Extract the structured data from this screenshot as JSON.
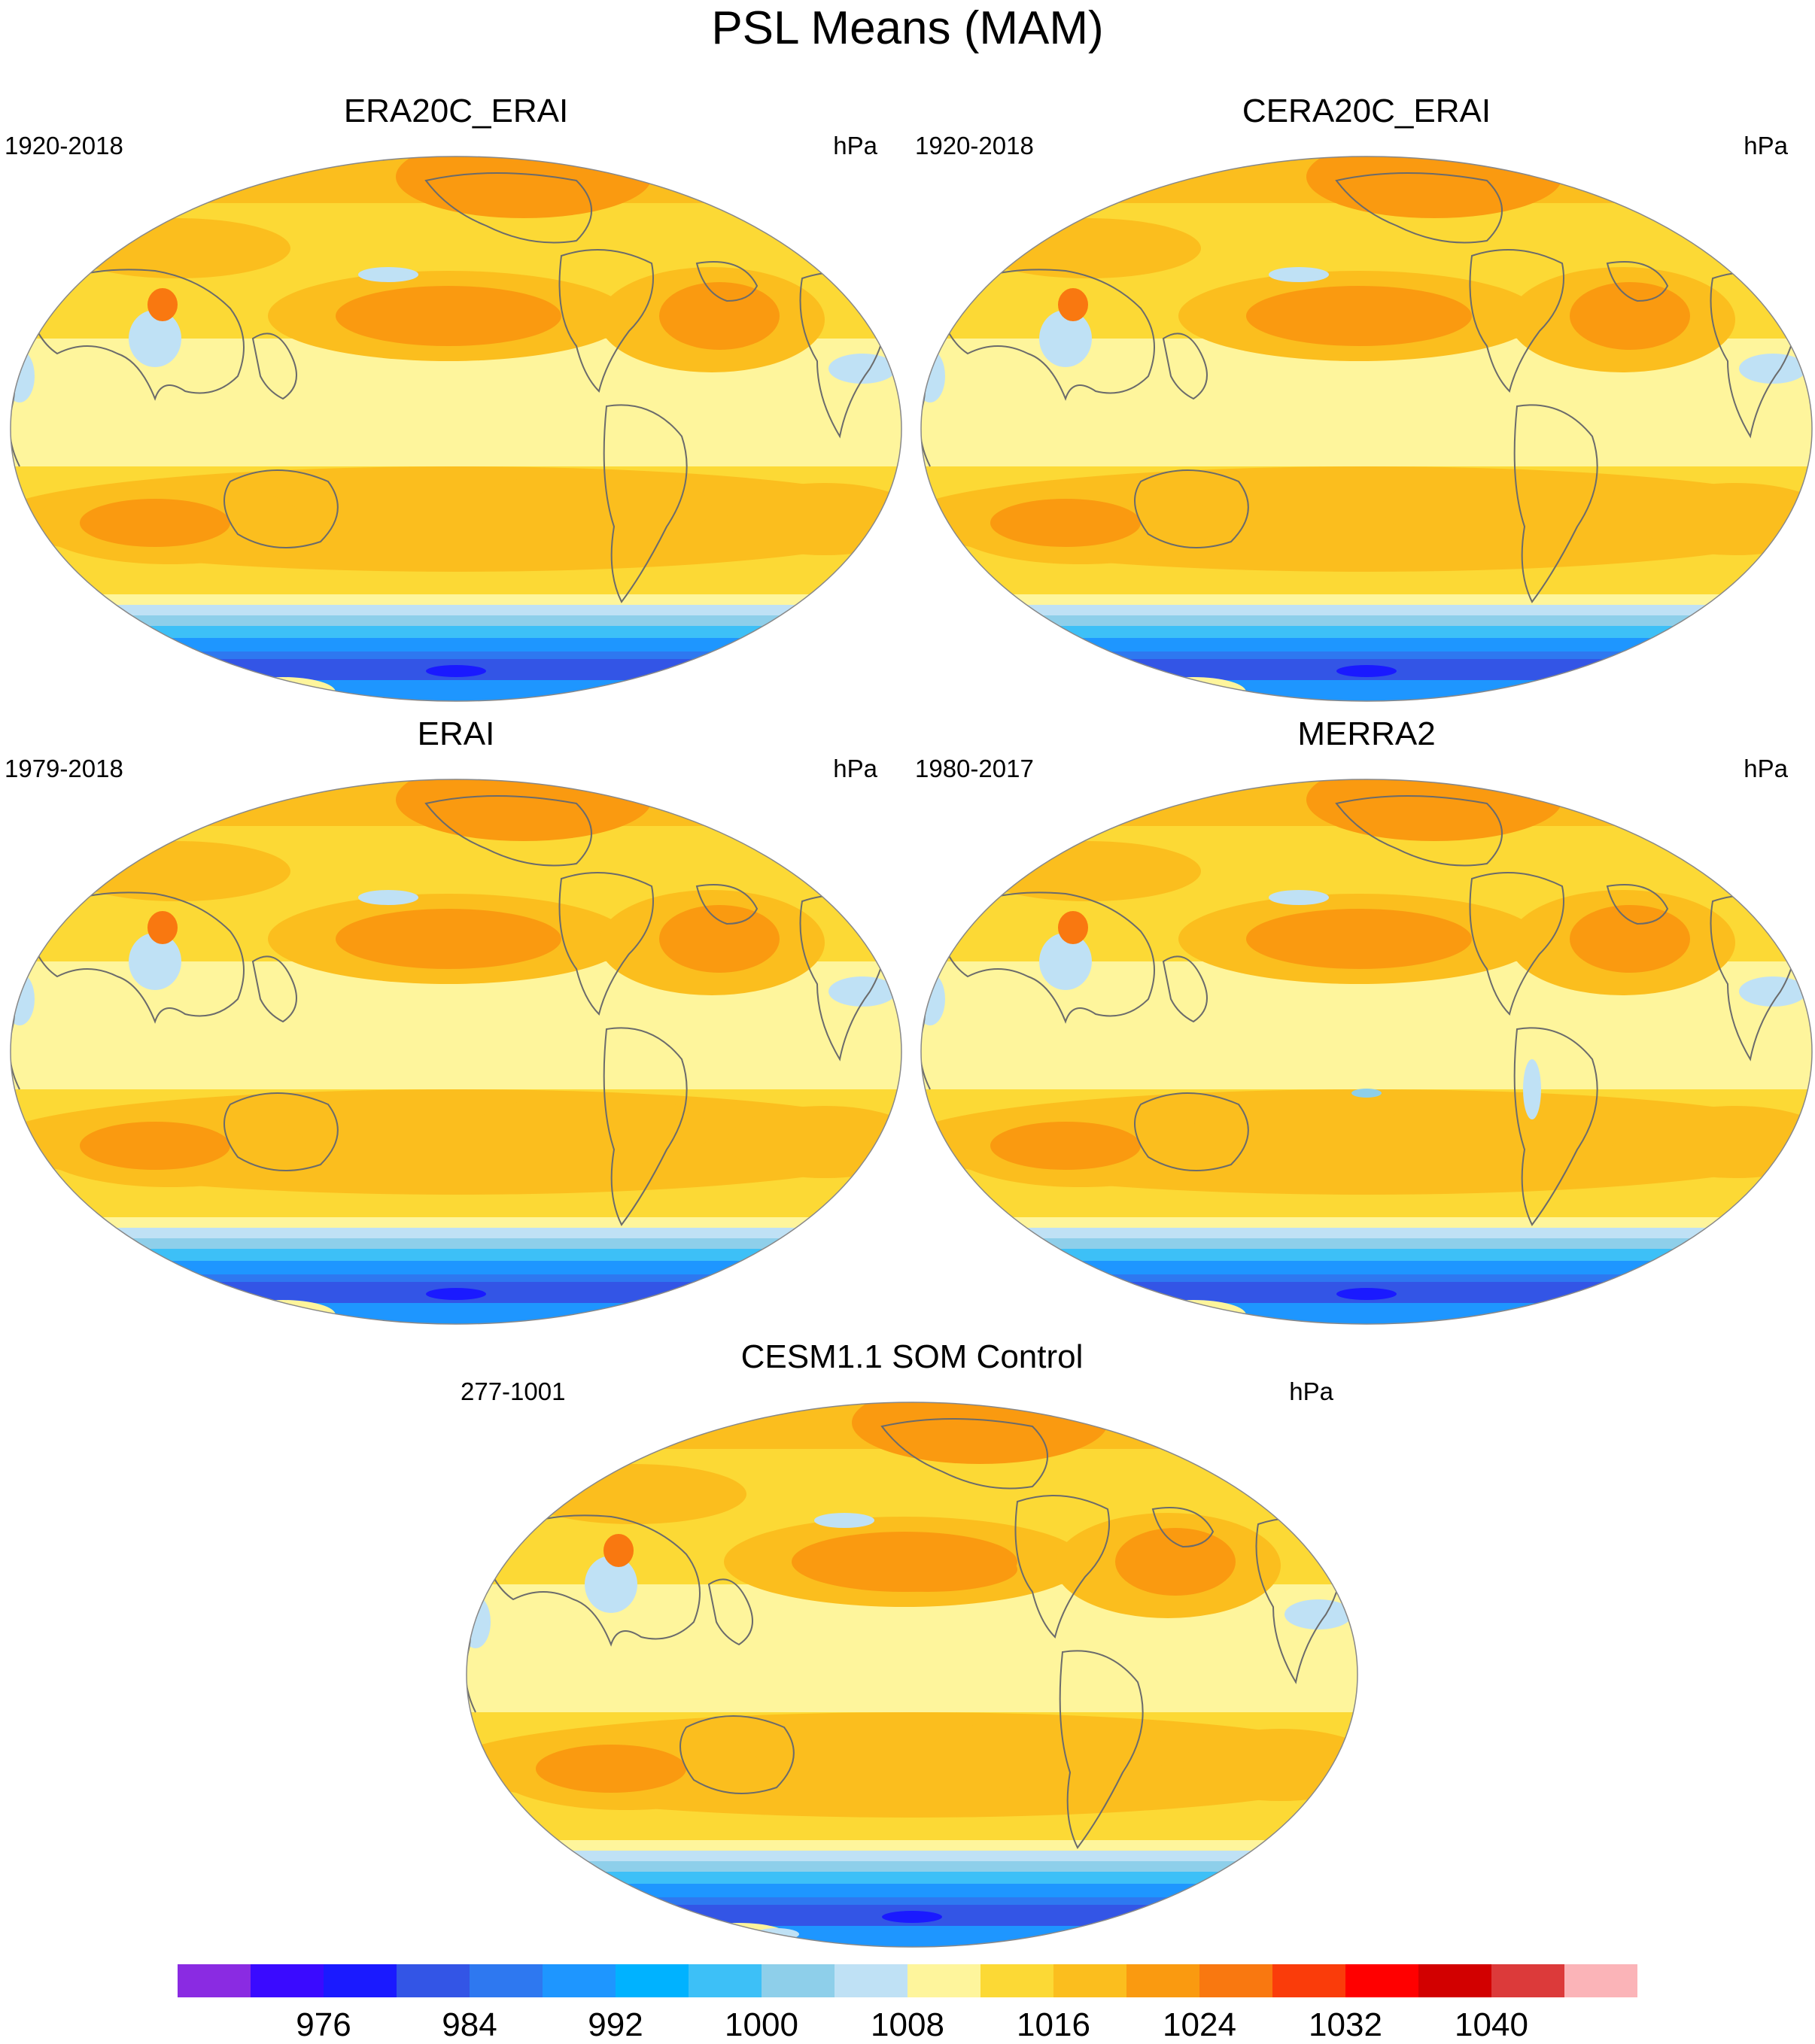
{
  "title": "PSL Means (MAM)",
  "panels": [
    {
      "title": "ERA20C_ERAI",
      "period": "1920-2018",
      "units": "hPa",
      "variant": "era20c"
    },
    {
      "title": "CERA20C_ERAI",
      "period": "1920-2018",
      "units": "hPa",
      "variant": "cera20c"
    },
    {
      "title": "ERAI",
      "period": "1979-2018",
      "units": "hPa",
      "variant": "erai"
    },
    {
      "title": "MERRA2",
      "period": "1980-2017",
      "units": "hPa",
      "variant": "merra2"
    },
    {
      "title": "CESM1.1 SOM Control",
      "period": "277-1001",
      "units": "hPa",
      "variant": "cesm"
    }
  ],
  "colorbar": {
    "colors": [
      "#8a2be2",
      "#3a0aff",
      "#1a1aff",
      "#3355e6",
      "#2e78f0",
      "#1e96ff",
      "#00b2ff",
      "#3dc0f7",
      "#8ecfea",
      "#bfe1f5",
      "#fef59c",
      "#fcd935",
      "#fbbe1e",
      "#fa9a10",
      "#f97810",
      "#fa3c0a",
      "#ff0000",
      "#d20000",
      "#dc3a3a",
      "#fbb4b8"
    ],
    "labels": [
      "976",
      "984",
      "992",
      "1000",
      "1008",
      "1016",
      "1024",
      "1032",
      "1040"
    ],
    "label_after_index": [
      1,
      3,
      5,
      7,
      9,
      11,
      13,
      15,
      17
    ]
  }
}
